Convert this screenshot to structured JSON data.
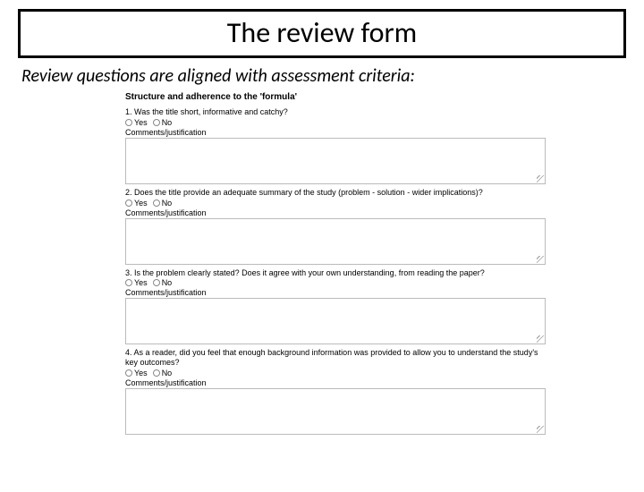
{
  "title": "The review form",
  "subtitle": "Review questions are aligned with assessment criteria:",
  "form": {
    "section_heading": "Structure and adherence to the 'formula'",
    "yes_label": "Yes",
    "no_label": "No",
    "comments_label": "Comments/justification",
    "questions": [
      {
        "num": "1.",
        "text": "Was the title short, informative and catchy?"
      },
      {
        "num": "2.",
        "text": "Does the title provide an adequate summary of the study (problem - solution - wider implications)?"
      },
      {
        "num": "3.",
        "text": "Is the problem clearly stated? Does it agree with your own understanding, from reading the paper?"
      },
      {
        "num": "4.",
        "text": "As a reader, did you feel that enough background information was provided to allow you to understand the study's key outcomes?"
      }
    ]
  },
  "colors": {
    "border": "#000000",
    "textarea_border": "#bbbbbb",
    "radio_border": "#888888",
    "bg": "#ffffff"
  }
}
